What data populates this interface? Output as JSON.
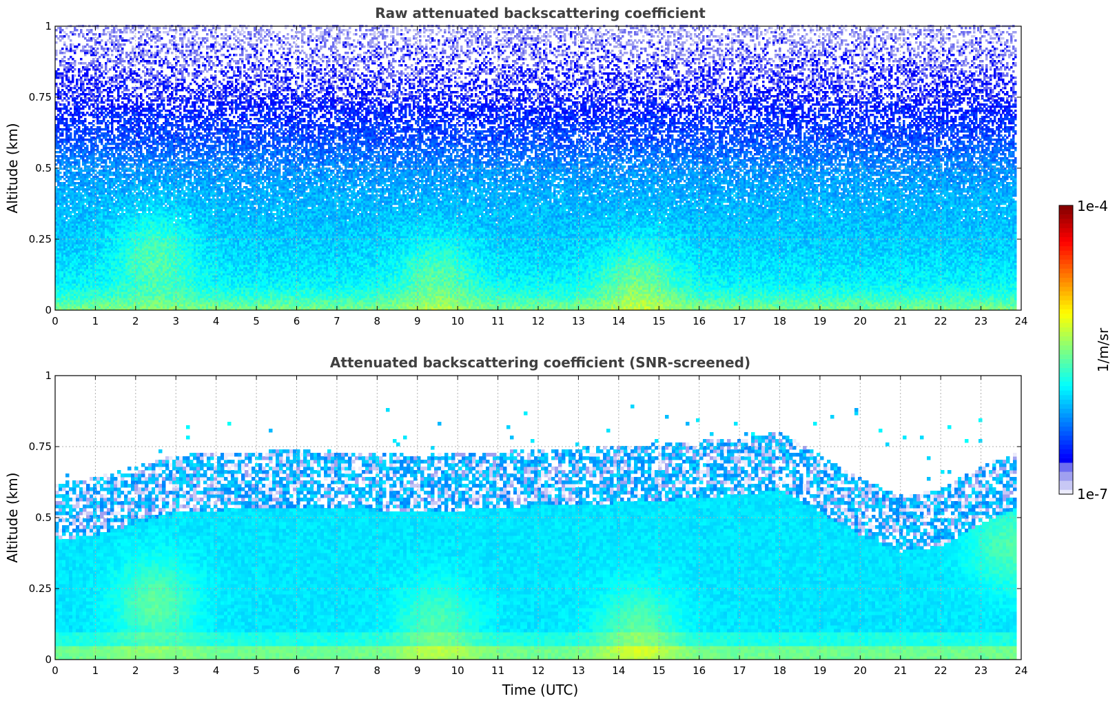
{
  "chart_data": [
    {
      "type": "heatmap",
      "title": "Raw attenuated backscattering coefficient",
      "xlabel": "",
      "ylabel": "Altitude (km)",
      "xlim": [
        0,
        24
      ],
      "ylim": [
        0,
        1
      ],
      "x_ticks": [
        "0",
        "1",
        "2",
        "3",
        "4",
        "5",
        "6",
        "7",
        "8",
        "9",
        "10",
        "11",
        "12",
        "13",
        "14",
        "15",
        "16",
        "17",
        "18",
        "19",
        "20",
        "21",
        "22",
        "23",
        "24"
      ],
      "y_ticks": [
        "0",
        "0.25",
        "0.5",
        "0.75",
        "1"
      ],
      "grid": true,
      "screened": false,
      "profile": {
        "altitude_km": [
          0.0,
          0.05,
          0.1,
          0.2,
          0.3,
          0.4,
          0.5,
          0.6,
          0.75,
          1.0
        ],
        "log10_beta": [
          -5.5,
          -5.75,
          -5.9,
          -6.0,
          -6.05,
          -6.1,
          -6.2,
          -6.4,
          -6.6,
          -6.8
        ]
      },
      "enhancements": [
        {
          "time_utc": 2.5,
          "altitude_km": 0.2,
          "log10_beta_increase": 0.35
        },
        {
          "time_utc": 9.5,
          "altitude_km": 0.12,
          "log10_beta_increase": 0.3
        },
        {
          "time_utc": 14.5,
          "altitude_km": 0.1,
          "log10_beta_increase": 0.35
        }
      ]
    },
    {
      "type": "heatmap",
      "title": "Attenuated backscattering coefficient (SNR-screened)",
      "xlabel": "Time (UTC)",
      "ylabel": "Altitude (km)",
      "xlim": [
        0,
        24
      ],
      "ylim": [
        0,
        1
      ],
      "x_ticks": [
        "0",
        "1",
        "2",
        "3",
        "4",
        "5",
        "6",
        "7",
        "8",
        "9",
        "10",
        "11",
        "12",
        "13",
        "14",
        "15",
        "16",
        "17",
        "18",
        "19",
        "20",
        "21",
        "22",
        "23",
        "24"
      ],
      "y_ticks": [
        "0",
        "0.25",
        "0.5",
        "0.75",
        "1"
      ],
      "grid": true,
      "screened": true,
      "boundary_layer_top_km": {
        "time_utc": [
          0,
          1,
          3,
          6,
          9,
          12,
          15,
          17,
          18,
          20,
          21,
          22,
          23,
          24
        ],
        "altitude_km": [
          0.6,
          0.62,
          0.7,
          0.72,
          0.7,
          0.72,
          0.74,
          0.76,
          0.78,
          0.62,
          0.56,
          0.58,
          0.66,
          0.72
        ]
      },
      "enhancements": [
        {
          "time_utc": 2.5,
          "altitude_km": 0.2,
          "log10_beta_increase": 0.35
        },
        {
          "time_utc": 9.5,
          "altitude_km": 0.12,
          "log10_beta_increase": 0.3
        },
        {
          "time_utc": 14.5,
          "altitude_km": 0.1,
          "log10_beta_increase": 0.35
        },
        {
          "time_utc": 23.7,
          "altitude_km": 0.4,
          "log10_beta_increase": 0.3
        }
      ]
    }
  ],
  "colorbar": {
    "colormap": "jet",
    "min_label": "1e-7",
    "max_label": "1e-4",
    "min_value": 1e-07,
    "max_value": 0.0001,
    "scale": "log",
    "label": "1/m/sr",
    "low_end_colors": [
      "#ebebfb",
      "#c8c8f5",
      "#a0a0f0",
      "#6e6ef0"
    ]
  }
}
